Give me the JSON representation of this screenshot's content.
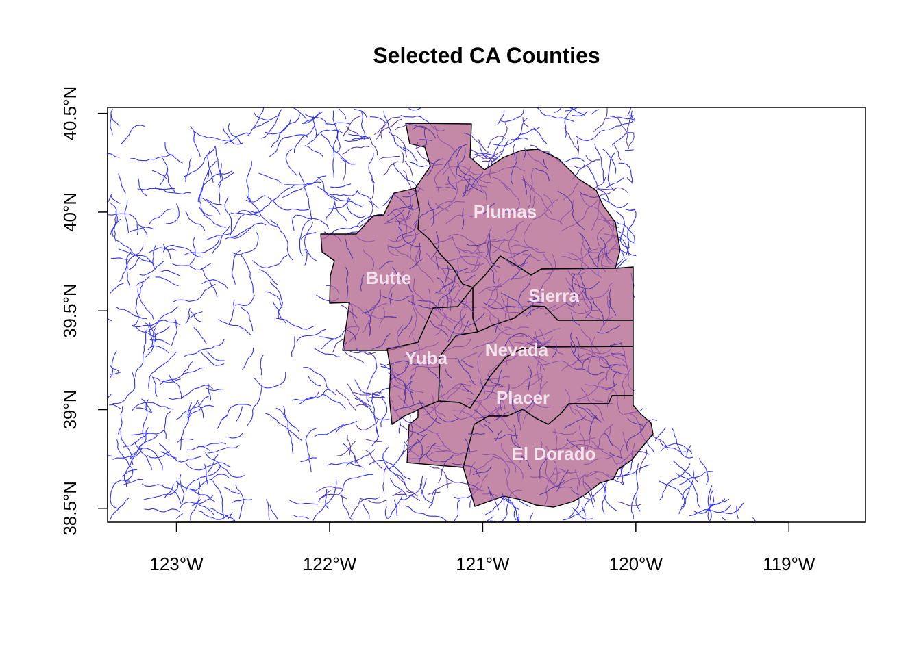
{
  "title": "Selected CA Counties",
  "colors": {
    "county_fill": "#b0628a",
    "county_border": "#000000",
    "rivers": "#3030ff",
    "county_label": "#f3e3ee"
  },
  "x_axis": {
    "ticks": [
      {
        "lon": -123,
        "label": "123°W"
      },
      {
        "lon": -122,
        "label": "122°W"
      },
      {
        "lon": -121,
        "label": "121°W"
      },
      {
        "lon": -120,
        "label": "120°W"
      },
      {
        "lon": -119,
        "label": "119°W"
      }
    ],
    "range": [
      -123.45,
      -118.5
    ]
  },
  "y_axis": {
    "ticks": [
      {
        "lat": 38.5,
        "label": "38.5°N"
      },
      {
        "lat": 39.0,
        "label": "39°N"
      },
      {
        "lat": 39.5,
        "label": "39.5°N"
      },
      {
        "lat": 40.0,
        "label": "40°N"
      },
      {
        "lat": 40.5,
        "label": "40.5°N"
      }
    ],
    "range": [
      38.43,
      40.53
    ]
  },
  "counties": [
    {
      "name": "Plumas"
    },
    {
      "name": "Butte"
    },
    {
      "name": "Sierra"
    },
    {
      "name": "Yuba"
    },
    {
      "name": "Nevada"
    },
    {
      "name": "Placer"
    },
    {
      "name": "El Dorado"
    }
  ]
}
